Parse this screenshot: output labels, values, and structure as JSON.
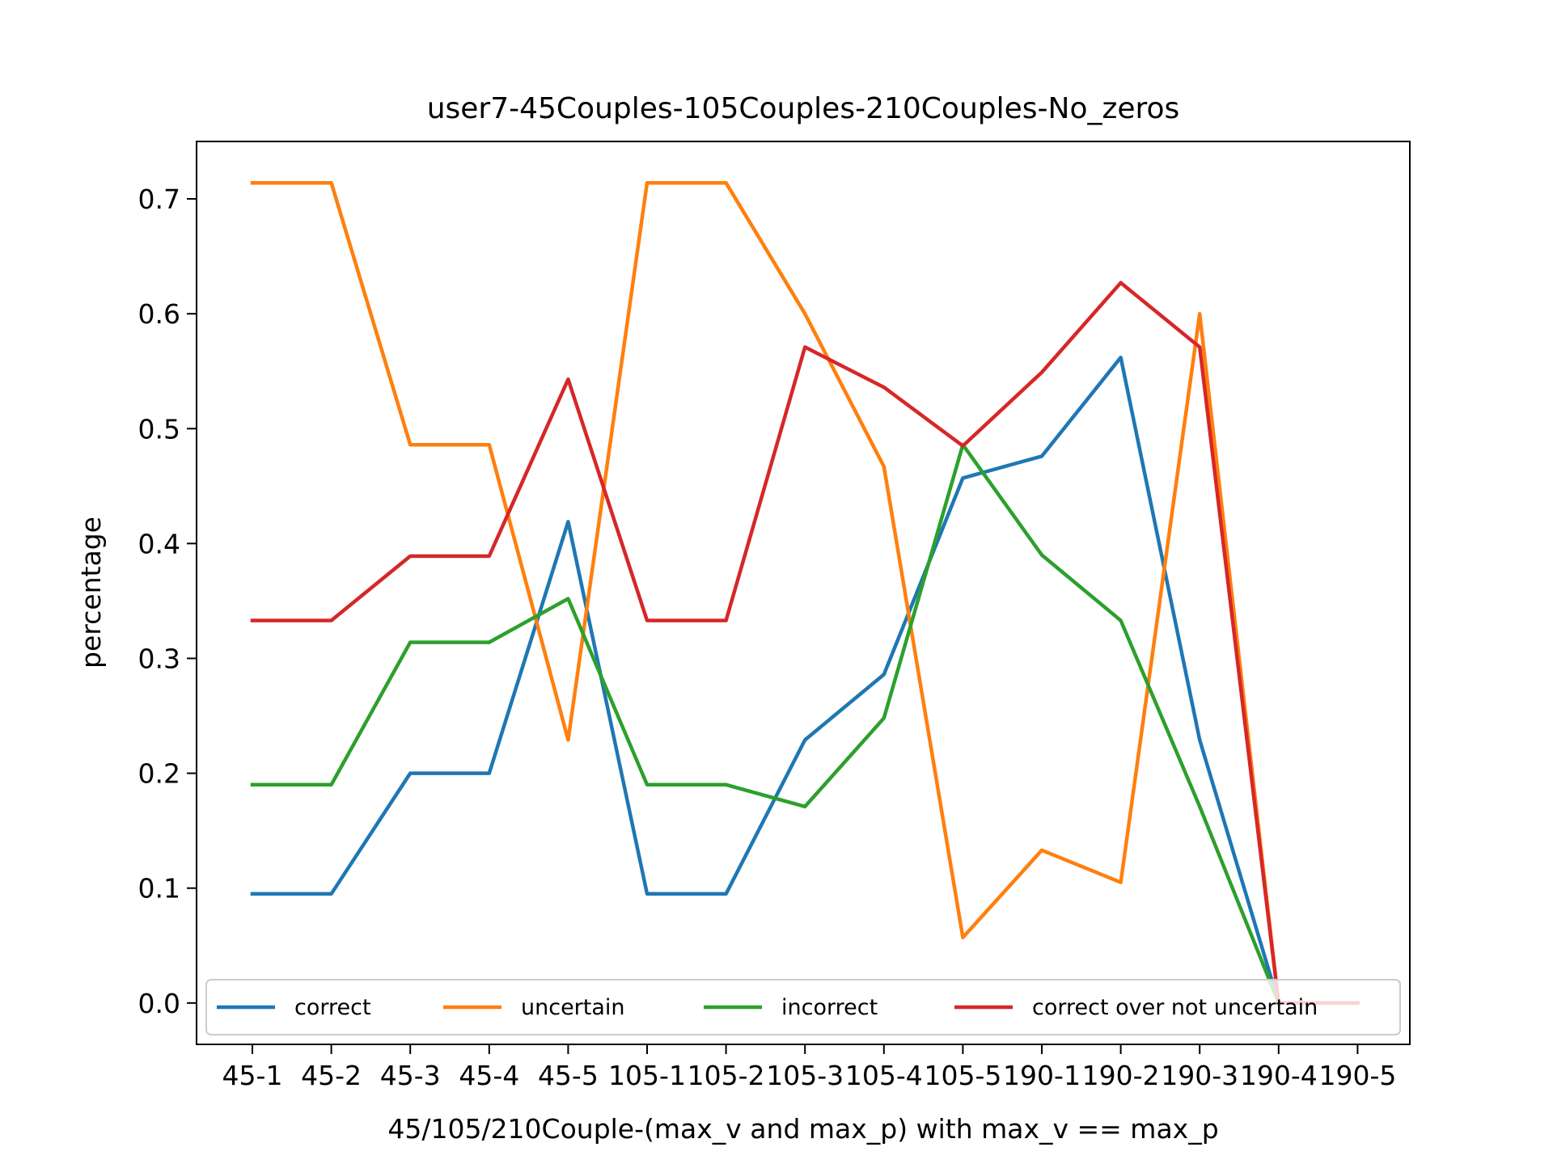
{
  "chart_data": {
    "type": "line",
    "title": "user7-45Couples-105Couples-210Couples-No_zeros",
    "xlabel": "45/105/210Couple-(max_v and max_p) with max_v == max_p",
    "ylabel": "percentage",
    "categories": [
      "45-1",
      "45-2",
      "45-3",
      "45-4",
      "45-5",
      "105-1",
      "105-2",
      "105-3",
      "105-4",
      "105-5",
      "190-1",
      "190-2",
      "190-3",
      "190-4",
      "190-5"
    ],
    "ylim": [
      -0.036,
      0.75
    ],
    "yticks": [
      "0.0",
      "0.1",
      "0.2",
      "0.3",
      "0.4",
      "0.5",
      "0.6",
      "0.7"
    ],
    "grid": false,
    "legend": {
      "placement": "bottom",
      "columns": 4
    },
    "series": [
      {
        "name": "correct",
        "color": "#1f77b4",
        "values": [
          0.095,
          0.095,
          0.2,
          0.2,
          0.419,
          0.095,
          0.095,
          0.229,
          0.286,
          0.457,
          0.476,
          0.562,
          0.229,
          0.0,
          0.0
        ]
      },
      {
        "name": "uncertain",
        "color": "#ff7f0e",
        "values": [
          0.714,
          0.714,
          0.486,
          0.486,
          0.229,
          0.714,
          0.714,
          0.6,
          0.467,
          0.057,
          0.133,
          0.105,
          0.6,
          0.0,
          0.0
        ]
      },
      {
        "name": "incorrect",
        "color": "#2ca02c",
        "values": [
          0.19,
          0.19,
          0.314,
          0.314,
          0.352,
          0.19,
          0.19,
          0.171,
          0.248,
          0.486,
          0.39,
          0.333,
          0.171,
          0.0,
          0.0
        ]
      },
      {
        "name": "correct over not uncertain",
        "color": "#d62728",
        "values": [
          0.333,
          0.333,
          0.389,
          0.389,
          0.543,
          0.333,
          0.333,
          0.571,
          0.536,
          0.485,
          0.549,
          0.627,
          0.571,
          0.0,
          0.0
        ]
      }
    ]
  }
}
